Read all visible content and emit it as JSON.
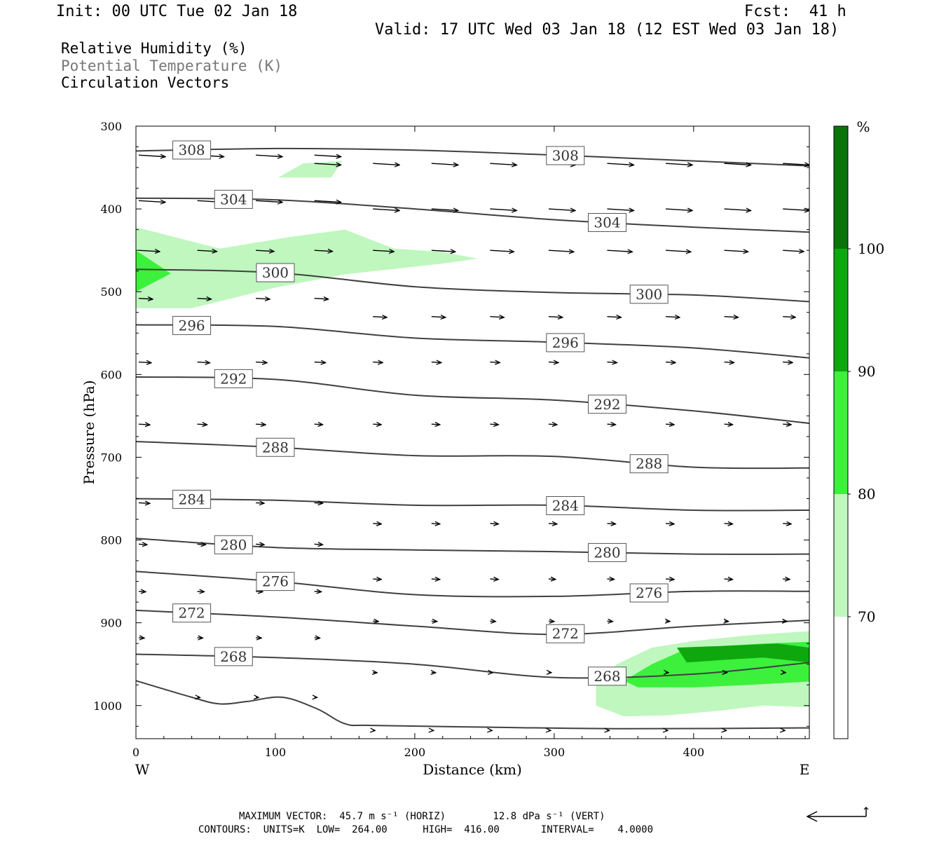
{
  "header": {
    "init": "Init: 00 UTC Tue 02 Jan 18",
    "fcst": "Fcst:  41 h",
    "valid": "Valid: 17 UTC Wed 03 Jan 18 (12 EST Wed 03 Jan 18)"
  },
  "legend": {
    "line1": "Relative Humidity (%)",
    "line2": "Potential Temperature (K)",
    "line3": "Circulation Vectors"
  },
  "footer": {
    "max_vector": "MAXIMUM VECTOR:  45.7 m s⁻¹ (HORIZ)        12.8 dPa s⁻¹ (VERT)",
    "contours": "CONTOURS:  UNITS=K  LOW=  264.00      HIGH=  416.00       INTERVAL=    4.0000"
  },
  "colors": {
    "rh70": "#bff7bf",
    "rh80": "#3cf03c",
    "rh90": "#0ea80e",
    "rh100": "#0a740a",
    "contour": "#404040"
  },
  "chart_data": {
    "type": "cross-section",
    "xlabel": "Distance (km)",
    "ylabel": "Pressure (hPa)",
    "xlim": [
      0,
      483
    ],
    "ylim": [
      1040,
      300
    ],
    "x_ticks": [
      "0",
      "100",
      "200",
      "300",
      "400"
    ],
    "y_ticks": [
      "300",
      "400",
      "500",
      "600",
      "700",
      "800",
      "900",
      "1000"
    ],
    "x_end_labels": {
      "left": "W",
      "right": "E"
    },
    "colorbar": {
      "unit": "%",
      "labels": [
        "100",
        "90",
        "80",
        "70"
      ]
    },
    "theta_contours": [
      {
        "value": "308",
        "points": [
          [
            0,
            330
          ],
          [
            100,
            327
          ],
          [
            200,
            329
          ],
          [
            300,
            335
          ],
          [
            400,
            342
          ],
          [
            483,
            348
          ]
        ]
      },
      {
        "value": "304",
        "points": [
          [
            0,
            387
          ],
          [
            100,
            389
          ],
          [
            200,
            400
          ],
          [
            300,
            413
          ],
          [
            400,
            422
          ],
          [
            483,
            428
          ]
        ]
      },
      {
        "value": "300",
        "points": [
          [
            0,
            473
          ],
          [
            100,
            477
          ],
          [
            200,
            494
          ],
          [
            300,
            501
          ],
          [
            400,
            504
          ],
          [
            483,
            512
          ]
        ]
      },
      {
        "value": "296",
        "points": [
          [
            0,
            540
          ],
          [
            100,
            542
          ],
          [
            200,
            556
          ],
          [
            300,
            561
          ],
          [
            400,
            568
          ],
          [
            483,
            580
          ]
        ]
      },
      {
        "value": "292",
        "points": [
          [
            0,
            603
          ],
          [
            100,
            606
          ],
          [
            200,
            625
          ],
          [
            300,
            631
          ],
          [
            400,
            644
          ],
          [
            483,
            659
          ]
        ]
      },
      {
        "value": "288",
        "points": [
          [
            0,
            681
          ],
          [
            100,
            688
          ],
          [
            200,
            698
          ],
          [
            300,
            699
          ],
          [
            400,
            712
          ],
          [
            483,
            713
          ]
        ]
      },
      {
        "value": "284",
        "points": [
          [
            0,
            750
          ],
          [
            100,
            752
          ],
          [
            200,
            758
          ],
          [
            300,
            758
          ],
          [
            400,
            764
          ],
          [
            483,
            764
          ]
        ]
      },
      {
        "value": "280",
        "points": [
          [
            0,
            798
          ],
          [
            100,
            809
          ],
          [
            200,
            812
          ],
          [
            300,
            814
          ],
          [
            400,
            817
          ],
          [
            483,
            817
          ]
        ]
      },
      {
        "value": "276",
        "points": [
          [
            0,
            838
          ],
          [
            100,
            850
          ],
          [
            200,
            866
          ],
          [
            300,
            868
          ],
          [
            400,
            862
          ],
          [
            483,
            862
          ]
        ]
      },
      {
        "value": "272",
        "points": [
          [
            0,
            885
          ],
          [
            100,
            893
          ],
          [
            200,
            904
          ],
          [
            300,
            914
          ],
          [
            400,
            904
          ],
          [
            483,
            897
          ]
        ]
      },
      {
        "value": "268",
        "points": [
          [
            0,
            938
          ],
          [
            100,
            942
          ],
          [
            200,
            950
          ],
          [
            300,
            966
          ],
          [
            400,
            962
          ],
          [
            483,
            948
          ]
        ]
      },
      {
        "value": "",
        "points": [
          [
            0,
            970
          ],
          [
            40,
            990
          ],
          [
            60,
            998
          ],
          [
            80,
            995
          ],
          [
            105,
            990
          ],
          [
            130,
            1004
          ],
          [
            150,
            1022
          ],
          [
            170,
            1024
          ],
          [
            250,
            1026
          ],
          [
            350,
            1028
          ],
          [
            483,
            1027
          ]
        ]
      }
    ],
    "rh_regions": [
      {
        "level": "70",
        "points": [
          [
            102,
            362
          ],
          [
            120,
            345
          ],
          [
            148,
            342
          ],
          [
            140,
            362
          ],
          [
            102,
            362
          ]
        ]
      },
      {
        "level": "70",
        "points": [
          [
            0,
            422
          ],
          [
            60,
            448
          ],
          [
            110,
            434
          ],
          [
            150,
            425
          ],
          [
            185,
            448
          ],
          [
            220,
            452
          ],
          [
            245,
            460
          ],
          [
            220,
            466
          ],
          [
            150,
            479
          ],
          [
            100,
            495
          ],
          [
            40,
            520
          ],
          [
            0,
            520
          ]
        ]
      },
      {
        "level": "80",
        "points": [
          [
            0,
            450
          ],
          [
            25,
            478
          ],
          [
            0,
            500
          ]
        ]
      },
      {
        "level": "70",
        "points": [
          [
            330,
            975
          ],
          [
            345,
            950
          ],
          [
            370,
            930
          ],
          [
            400,
            922
          ],
          [
            440,
            915
          ],
          [
            483,
            910
          ],
          [
            483,
            1002
          ],
          [
            450,
            1000
          ],
          [
            420,
            1006
          ],
          [
            380,
            1012
          ],
          [
            350,
            1013
          ],
          [
            330,
            1000
          ]
        ]
      },
      {
        "level": "80",
        "points": [
          [
            350,
            970
          ],
          [
            370,
            950
          ],
          [
            390,
            935
          ],
          [
            420,
            928
          ],
          [
            450,
            925
          ],
          [
            483,
            923
          ],
          [
            483,
            971
          ],
          [
            440,
            975
          ],
          [
            400,
            978
          ],
          [
            360,
            978
          ]
        ]
      },
      {
        "level": "90",
        "points": [
          [
            388,
            930
          ],
          [
            420,
            928
          ],
          [
            460,
            925
          ],
          [
            483,
            930
          ],
          [
            483,
            948
          ],
          [
            450,
            942
          ],
          [
            420,
            945
          ],
          [
            395,
            948
          ]
        ]
      }
    ],
    "vectors": [
      {
        "p": 335,
        "points": [
          [
            0,
            38
          ],
          [
            42,
            38
          ],
          [
            84,
            38
          ],
          [
            126,
            38
          ]
        ]
      },
      {
        "p": 345,
        "points": [
          [
            126,
            38
          ],
          [
            168,
            38
          ],
          [
            210,
            38
          ],
          [
            252,
            38
          ],
          [
            294,
            38
          ],
          [
            336,
            38
          ],
          [
            378,
            38
          ],
          [
            420,
            38
          ],
          [
            462,
            38
          ]
        ]
      },
      {
        "p": 390,
        "points": [
          [
            0,
            38
          ],
          [
            42,
            38
          ],
          [
            84,
            38
          ],
          [
            126,
            38
          ]
        ]
      },
      {
        "p": 400,
        "points": [
          [
            168,
            38
          ],
          [
            210,
            38
          ],
          [
            252,
            38
          ],
          [
            294,
            38
          ],
          [
            336,
            38
          ],
          [
            378,
            38
          ],
          [
            420,
            38
          ],
          [
            462,
            38
          ]
        ]
      },
      {
        "p": 450,
        "points": [
          [
            0,
            30
          ],
          [
            42,
            28
          ],
          [
            84,
            26
          ],
          [
            126,
            26
          ],
          [
            168,
            30
          ],
          [
            210,
            34
          ],
          [
            252,
            34
          ],
          [
            294,
            36
          ],
          [
            336,
            36
          ],
          [
            378,
            36
          ],
          [
            420,
            34
          ],
          [
            462,
            30
          ]
        ]
      },
      {
        "p": 508,
        "points": [
          [
            0,
            20
          ],
          [
            42,
            20
          ],
          [
            84,
            20
          ],
          [
            126,
            20
          ]
        ]
      },
      {
        "p": 530,
        "points": [
          [
            168,
            20
          ],
          [
            210,
            20
          ],
          [
            252,
            20
          ],
          [
            294,
            20
          ],
          [
            336,
            20
          ],
          [
            378,
            20
          ],
          [
            420,
            20
          ],
          [
            462,
            18
          ]
        ]
      },
      {
        "p": 585,
        "points": [
          [
            0,
            18
          ],
          [
            42,
            18
          ],
          [
            84,
            16
          ],
          [
            126,
            16
          ],
          [
            168,
            14
          ],
          [
            210,
            14
          ],
          [
            252,
            14
          ],
          [
            294,
            14
          ],
          [
            336,
            14
          ],
          [
            378,
            14
          ],
          [
            420,
            14
          ],
          [
            462,
            14
          ]
        ]
      },
      {
        "p": 660,
        "points": [
          [
            0,
            16
          ],
          [
            42,
            14
          ],
          [
            84,
            14
          ],
          [
            126,
            12
          ],
          [
            168,
            12
          ],
          [
            210,
            12
          ],
          [
            252,
            12
          ],
          [
            294,
            12
          ],
          [
            336,
            12
          ],
          [
            378,
            12
          ],
          [
            420,
            12
          ],
          [
            462,
            12
          ]
        ]
      },
      {
        "p": 755,
        "points": [
          [
            0,
            16
          ],
          [
            42,
            14
          ],
          [
            84,
            12
          ],
          [
            126,
            12
          ]
        ]
      },
      {
        "p": 780,
        "points": [
          [
            168,
            12
          ],
          [
            210,
            12
          ],
          [
            252,
            12
          ],
          [
            294,
            12
          ],
          [
            336,
            12
          ],
          [
            378,
            12
          ],
          [
            420,
            12
          ],
          [
            462,
            12
          ]
        ]
      },
      {
        "p": 805,
        "points": [
          [
            0,
            12
          ],
          [
            42,
            12
          ],
          [
            84,
            12
          ],
          [
            126,
            12
          ]
        ]
      },
      {
        "p": 847,
        "points": [
          [
            168,
            12
          ],
          [
            210,
            12
          ],
          [
            252,
            12
          ],
          [
            294,
            10
          ],
          [
            336,
            10
          ],
          [
            378,
            12
          ],
          [
            420,
            12
          ],
          [
            462,
            10
          ]
        ]
      },
      {
        "p": 862,
        "points": [
          [
            0,
            10
          ],
          [
            42,
            10
          ],
          [
            84,
            10
          ],
          [
            126,
            10
          ]
        ]
      },
      {
        "p": 898,
        "points": [
          [
            168,
            8
          ],
          [
            210,
            8
          ],
          [
            252,
            8
          ],
          [
            294,
            8
          ],
          [
            336,
            8
          ],
          [
            378,
            6
          ],
          [
            420,
            6
          ],
          [
            462,
            6
          ]
        ]
      },
      {
        "p": 918,
        "points": [
          [
            0,
            8
          ],
          [
            42,
            8
          ],
          [
            84,
            8
          ],
          [
            126,
            8
          ]
        ]
      },
      {
        "p": 960,
        "points": [
          [
            168,
            6
          ],
          [
            210,
            6
          ],
          [
            252,
            4
          ],
          [
            294,
            4
          ],
          [
            336,
            4
          ],
          [
            378,
            4
          ],
          [
            420,
            4
          ],
          [
            462,
            4
          ]
        ]
      },
      {
        "p": 990,
        "points": [
          [
            42,
            4
          ],
          [
            84,
            4
          ],
          [
            126,
            4
          ]
        ]
      },
      {
        "p": 1030,
        "points": [
          [
            168,
            3
          ],
          [
            210,
            3
          ],
          [
            252,
            3
          ],
          [
            294,
            3
          ],
          [
            336,
            3
          ],
          [
            378,
            3
          ],
          [
            420,
            3
          ],
          [
            462,
            3
          ]
        ]
      }
    ],
    "grid": false
  }
}
